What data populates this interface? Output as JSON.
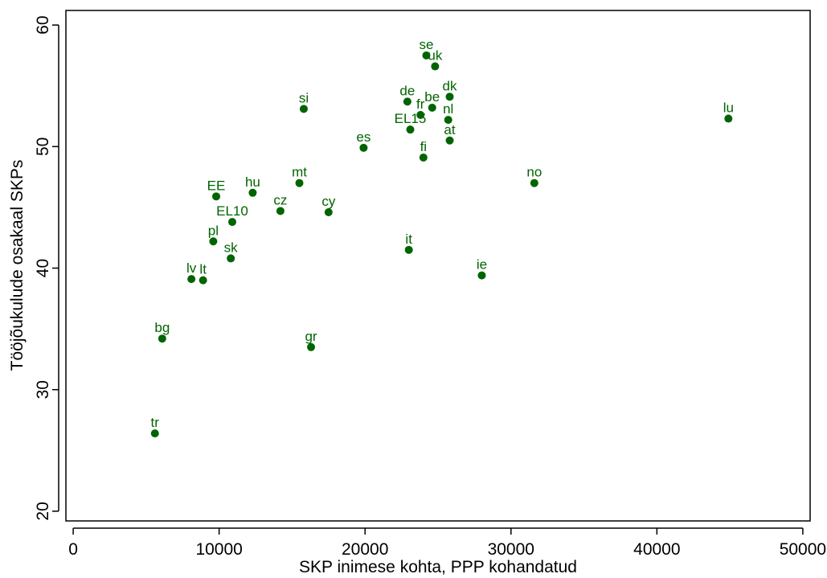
{
  "chart_data": {
    "type": "scatter",
    "title": "",
    "xlabel": "SKP inimese kohta, PPP kohandatud",
    "ylabel": "Tööjõukulude osakaal SKPs",
    "xlim": [
      -500,
      50500
    ],
    "ylim": [
      19.2,
      61.2
    ],
    "xticks": [
      0,
      10000,
      20000,
      30000,
      40000,
      50000
    ],
    "yticks": [
      20,
      30,
      40,
      50,
      60
    ],
    "grid": false,
    "legend": "none",
    "marker_color": "#006400",
    "points": [
      {
        "label": "se",
        "x": 24200,
        "y": 57.5
      },
      {
        "label": "uk",
        "x": 24800,
        "y": 56.6
      },
      {
        "label": "dk",
        "x": 25800,
        "y": 54.1
      },
      {
        "label": "de",
        "x": 22900,
        "y": 53.7
      },
      {
        "label": "fr",
        "x": 23800,
        "y": 52.6
      },
      {
        "label": "be",
        "x": 24600,
        "y": 53.2
      },
      {
        "label": "nl",
        "x": 25700,
        "y": 52.2
      },
      {
        "label": "EL15",
        "x": 23100,
        "y": 51.4
      },
      {
        "label": "at",
        "x": 25800,
        "y": 50.5
      },
      {
        "label": "fi",
        "x": 24000,
        "y": 49.1
      },
      {
        "label": "si",
        "x": 15800,
        "y": 53.1
      },
      {
        "label": "es",
        "x": 19900,
        "y": 49.9
      },
      {
        "label": "lu",
        "x": 44900,
        "y": 52.3
      },
      {
        "label": "no",
        "x": 31600,
        "y": 47.0
      },
      {
        "label": "mt",
        "x": 15500,
        "y": 47.0
      },
      {
        "label": "hu",
        "x": 12300,
        "y": 46.2
      },
      {
        "label": "EE",
        "x": 9800,
        "y": 45.9
      },
      {
        "label": "EL10",
        "x": 10900,
        "y": 43.8
      },
      {
        "label": "cz",
        "x": 14200,
        "y": 44.7
      },
      {
        "label": "cy",
        "x": 17500,
        "y": 44.6
      },
      {
        "label": "pl",
        "x": 9600,
        "y": 42.2
      },
      {
        "label": "sk",
        "x": 10800,
        "y": 40.8
      },
      {
        "label": "it",
        "x": 23000,
        "y": 41.5
      },
      {
        "label": "lv",
        "x": 8100,
        "y": 39.1
      },
      {
        "label": "lt",
        "x": 8900,
        "y": 39.0
      },
      {
        "label": "ie",
        "x": 28000,
        "y": 39.4
      },
      {
        "label": "bg",
        "x": 6100,
        "y": 34.2
      },
      {
        "label": "gr",
        "x": 16300,
        "y": 33.5
      },
      {
        "label": "tr",
        "x": 5600,
        "y": 26.4
      }
    ]
  }
}
